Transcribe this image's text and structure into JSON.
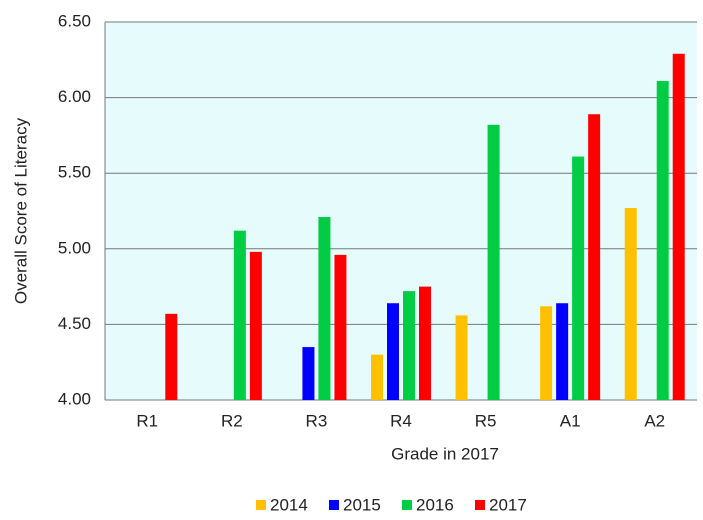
{
  "chart_data": {
    "type": "bar",
    "categories": [
      "R1",
      "R2",
      "R3",
      "R4",
      "R5",
      "A1",
      "A2"
    ],
    "series": [
      {
        "name": "2014",
        "color": "#ffc000",
        "values": [
          null,
          null,
          null,
          4.3,
          4.56,
          4.62,
          5.27
        ]
      },
      {
        "name": "2015",
        "color": "#0000ff",
        "values": [
          null,
          null,
          4.35,
          4.64,
          null,
          4.64,
          null
        ]
      },
      {
        "name": "2016",
        "color": "#00cc44",
        "values": [
          null,
          5.12,
          5.21,
          4.72,
          5.82,
          5.61,
          6.11
        ]
      },
      {
        "name": "2017",
        "color": "#ff0000",
        "values": [
          4.57,
          4.98,
          4.96,
          4.75,
          null,
          5.89,
          6.29
        ]
      }
    ],
    "x_label": "Grade in 2017",
    "y_label": "Overall Score of Literacy",
    "ylim": [
      4,
      6.5
    ],
    "yticks": [
      {
        "value": 4,
        "label": "4.00"
      },
      {
        "value": 4.5,
        "label": "4.50"
      },
      {
        "value": 5,
        "label": "5.00"
      },
      {
        "value": 5.5,
        "label": "5.50"
      },
      {
        "value": 6,
        "label": "6.00"
      },
      {
        "value": 6.5,
        "label": "6.50"
      }
    ],
    "grid": true,
    "legend": "bottom"
  }
}
